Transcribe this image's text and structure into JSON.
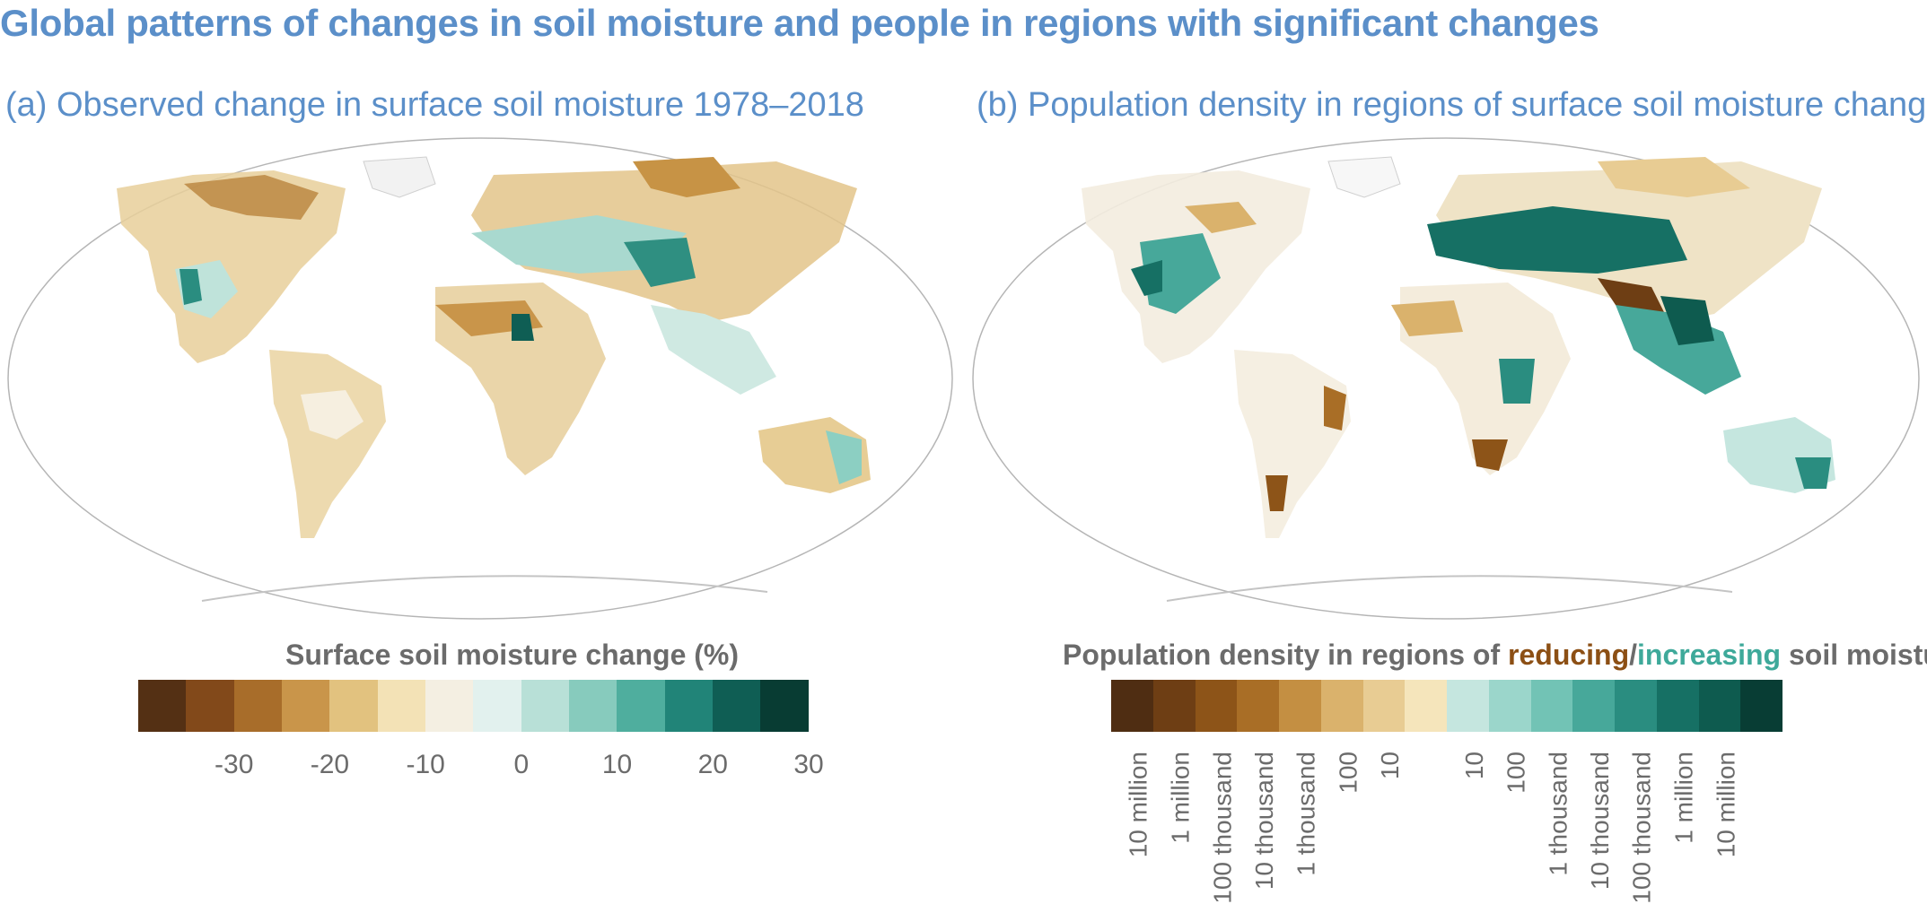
{
  "title": "Global patterns of changes in soil moisture and people in regions with significant changes",
  "panel_a": {
    "subtitle": "(a) Observed change in surface soil moisture 1978–2018",
    "legend_title": "Surface soil moisture change (%)",
    "legend_colors": [
      "#543014",
      "#82491a",
      "#a86d2a",
      "#c9954a",
      "#e2c27f",
      "#f3e2b6",
      "#f4efe2",
      "#e2f1ee",
      "#b8e0d7",
      "#87cbbd",
      "#4fae9e",
      "#218478",
      "#0f5e54",
      "#083c33"
    ],
    "tick_labels": [
      "-30",
      "-20",
      "-10",
      "0",
      "10",
      "20",
      "30"
    ]
  },
  "panel_b": {
    "subtitle": "(b) Population density in regions of surface soil moisture changes",
    "legend_title_prefix": "Population density in regions of ",
    "legend_title_reducing": "reducing",
    "legend_title_sep": "/",
    "legend_title_increasing": "increasing",
    "legend_title_suffix": " soil moisture",
    "legend_colors": [
      "#4f2d12",
      "#6e3e14",
      "#8d5418",
      "#a96e26",
      "#c48f42",
      "#dab26c",
      "#e8cc93",
      "#f5e5bb",
      "#c5e6df",
      "#9bd6cb",
      "#72c3b5",
      "#47a89a",
      "#2a8d80",
      "#167064",
      "#0e5b4f",
      "#083d34"
    ],
    "tick_labels": [
      "10 million",
      "1 million",
      "100 thousand",
      "10 thousand",
      "1 thousand",
      "100",
      "10",
      "10",
      "100",
      "1 thousand",
      "10 thousand",
      "100 thousand",
      "1 million",
      "10 million"
    ]
  }
}
